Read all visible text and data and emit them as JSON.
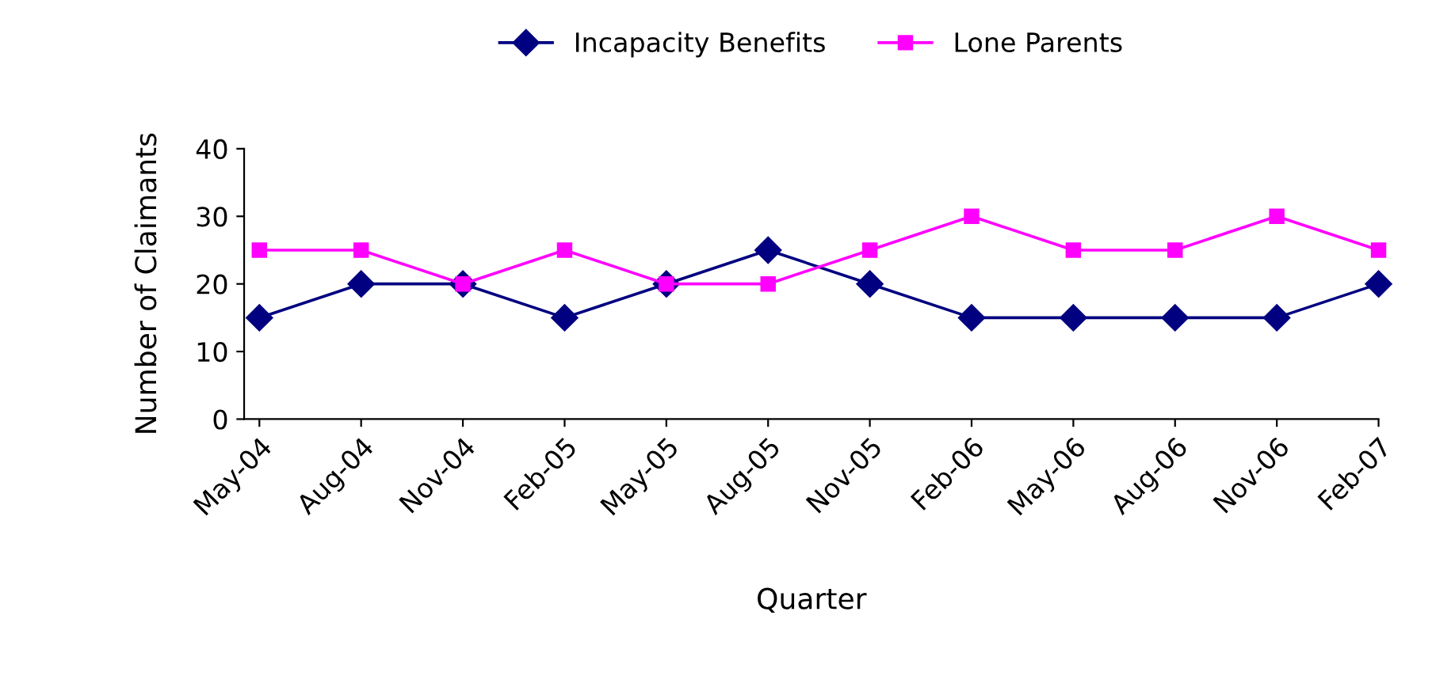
{
  "chart_data": {
    "type": "line",
    "xlabel": "Quarter",
    "ylabel": "Number of Claimants",
    "categories": [
      "May-04",
      "Aug-04",
      "Nov-04",
      "Feb-05",
      "May-05",
      "Aug-05",
      "Nov-05",
      "Feb-06",
      "May-06",
      "Aug-06",
      "Nov-06",
      "Feb-07"
    ],
    "series": [
      {
        "name": "Incapacity Benefits",
        "color": "#000080",
        "marker": "diamond",
        "values": [
          15,
          20,
          20,
          15,
          20,
          25,
          20,
          15,
          15,
          15,
          15,
          20
        ]
      },
      {
        "name": "Lone Parents",
        "color": "#ff00ff",
        "marker": "square",
        "values": [
          25,
          25,
          20,
          25,
          20,
          20,
          25,
          30,
          25,
          25,
          30,
          25
        ]
      }
    ],
    "ylim": [
      0,
      40
    ],
    "yticks": [
      0,
      10,
      20,
      30,
      40
    ],
    "grid": false,
    "legend": "top",
    "line_style": "solid"
  }
}
